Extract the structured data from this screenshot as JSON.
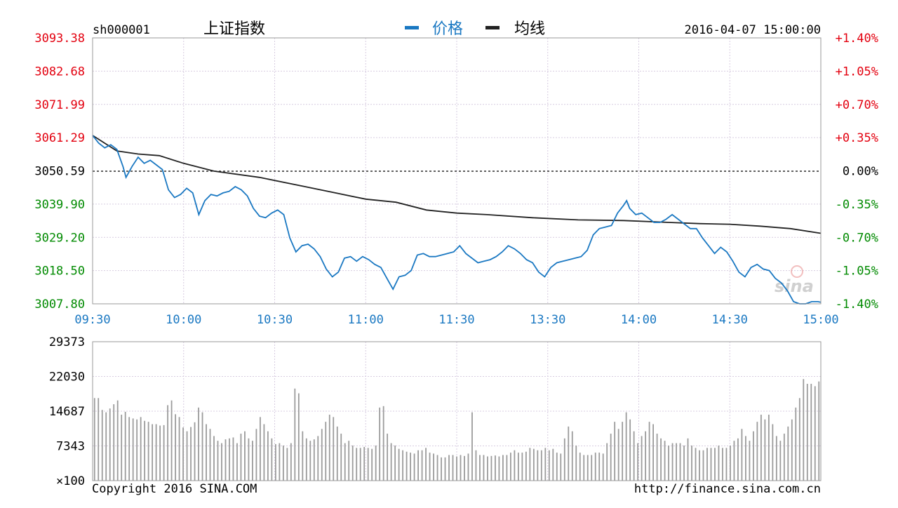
{
  "chart_data": {
    "type": "line",
    "symbol": "sh000001",
    "name": "上证指数",
    "datetime": "2016-04-07 15:00:00",
    "legend": [
      {
        "label": "价格",
        "color": "#1a78c2"
      },
      {
        "label": "均线",
        "color": "#222222"
      }
    ],
    "legend_position": "top-center",
    "grid": true,
    "colors": {
      "up": "#e3000f",
      "down": "#008a00",
      "flat": "#000000",
      "price": "#1a78c2",
      "average": "#222222",
      "time_axis": "#1a78c2",
      "volume": "#9b9b9b"
    },
    "price_axis": {
      "ylim": [
        3007.8,
        3093.38
      ],
      "ticks": [
        "3093.38",
        "3082.68",
        "3071.99",
        "3061.29",
        "3050.59",
        "3039.90",
        "3029.20",
        "3018.50",
        "3007.80"
      ],
      "reference": 3050.59
    },
    "percent_axis": {
      "ticks": [
        "+1.40%",
        "+1.05%",
        "+0.70%",
        "+0.35%",
        "0.00%",
        "-0.35%",
        "-0.70%",
        "-1.05%",
        "-1.40%"
      ]
    },
    "time_ticks": [
      "09:30",
      "10:00",
      "10:30",
      "11:00",
      "11:30",
      "13:30",
      "14:00",
      "14:30",
      "15:00"
    ],
    "total_minutes": 240,
    "price_series": {
      "name": "价格",
      "points": [
        [
          0,
          3062.0
        ],
        [
          2,
          3059.5
        ],
        [
          4,
          3058.0
        ],
        [
          6,
          3059.0
        ],
        [
          8,
          3057.5
        ],
        [
          10,
          3052.0
        ],
        [
          11,
          3048.5
        ],
        [
          13,
          3052.0
        ],
        [
          15,
          3055.0
        ],
        [
          17,
          3053.0
        ],
        [
          19,
          3054.0
        ],
        [
          21,
          3052.5
        ],
        [
          23,
          3051.0
        ],
        [
          25,
          3044.5
        ],
        [
          27,
          3042.0
        ],
        [
          29,
          3043.0
        ],
        [
          31,
          3045.0
        ],
        [
          33,
          3043.5
        ],
        [
          35,
          3036.5
        ],
        [
          37,
          3041.0
        ],
        [
          39,
          3043.0
        ],
        [
          41,
          3042.5
        ],
        [
          43,
          3043.5
        ],
        [
          45,
          3044.0
        ],
        [
          47,
          3045.5
        ],
        [
          49,
          3044.5
        ],
        [
          51,
          3042.5
        ],
        [
          53,
          3038.5
        ],
        [
          55,
          3036.0
        ],
        [
          57,
          3035.5
        ],
        [
          59,
          3037.0
        ],
        [
          61,
          3038.0
        ],
        [
          63,
          3036.5
        ],
        [
          65,
          3029.0
        ],
        [
          67,
          3024.5
        ],
        [
          69,
          3026.5
        ],
        [
          71,
          3027.0
        ],
        [
          73,
          3025.5
        ],
        [
          75,
          3023.0
        ],
        [
          77,
          3019.0
        ],
        [
          79,
          3016.5
        ],
        [
          81,
          3018.0
        ],
        [
          83,
          3022.5
        ],
        [
          85,
          3023.0
        ],
        [
          87,
          3021.5
        ],
        [
          89,
          3023.0
        ],
        [
          91,
          3022.0
        ],
        [
          93,
          3020.5
        ],
        [
          95,
          3019.5
        ],
        [
          97,
          3016.0
        ],
        [
          99,
          3012.5
        ],
        [
          101,
          3016.5
        ],
        [
          103,
          3017.0
        ],
        [
          105,
          3018.5
        ],
        [
          107,
          3023.5
        ],
        [
          109,
          3024.0
        ],
        [
          111,
          3023.0
        ],
        [
          113,
          3023.0
        ],
        [
          115,
          3023.5
        ],
        [
          117,
          3024.0
        ],
        [
          119,
          3024.5
        ],
        [
          121,
          3026.5
        ],
        [
          123,
          3024.0
        ],
        [
          125,
          3022.5
        ],
        [
          127,
          3021.0
        ],
        [
          129,
          3021.5
        ],
        [
          131,
          3022.0
        ],
        [
          133,
          3023.0
        ],
        [
          135,
          3024.5
        ],
        [
          137,
          3026.5
        ],
        [
          139,
          3025.5
        ],
        [
          141,
          3024.0
        ],
        [
          143,
          3022.0
        ],
        [
          145,
          3021.0
        ],
        [
          147,
          3018.0
        ],
        [
          149,
          3016.5
        ],
        [
          151,
          3019.5
        ],
        [
          153,
          3021.0
        ],
        [
          155,
          3021.5
        ],
        [
          157,
          3022.0
        ],
        [
          159,
          3022.5
        ],
        [
          161,
          3023.0
        ],
        [
          163,
          3025.0
        ],
        [
          165,
          3030.0
        ],
        [
          167,
          3032.0
        ],
        [
          169,
          3032.5
        ],
        [
          171,
          3033.0
        ],
        [
          173,
          3037.0
        ],
        [
          175,
          3039.5
        ],
        [
          176,
          3041.0
        ],
        [
          177,
          3038.5
        ],
        [
          179,
          3036.5
        ],
        [
          181,
          3037.0
        ],
        [
          183,
          3035.5
        ],
        [
          185,
          3034.0
        ],
        [
          187,
          3034.0
        ],
        [
          189,
          3035.0
        ],
        [
          191,
          3036.5
        ],
        [
          193,
          3035.0
        ],
        [
          195,
          3033.5
        ],
        [
          197,
          3032.0
        ],
        [
          199,
          3032.0
        ],
        [
          201,
          3029.0
        ],
        [
          203,
          3026.5
        ],
        [
          205,
          3024.0
        ],
        [
          207,
          3026.0
        ],
        [
          209,
          3024.5
        ],
        [
          211,
          3021.5
        ],
        [
          213,
          3018.0
        ],
        [
          215,
          3016.5
        ],
        [
          217,
          3019.5
        ],
        [
          219,
          3020.5
        ],
        [
          221,
          3019.0
        ],
        [
          223,
          3018.5
        ],
        [
          225,
          3016.0
        ],
        [
          227,
          3014.5
        ],
        [
          229,
          3012.0
        ],
        [
          231,
          3008.5
        ],
        [
          233,
          3007.8
        ],
        [
          235,
          3007.8
        ],
        [
          237,
          3008.5
        ],
        [
          239,
          3008.5
        ],
        [
          240,
          3008.3
        ]
      ]
    },
    "average_series": {
      "name": "均线",
      "points": [
        [
          0,
          3062.0
        ],
        [
          8,
          3057.0
        ],
        [
          15,
          3056.0
        ],
        [
          22,
          3055.5
        ],
        [
          30,
          3053.0
        ],
        [
          40,
          3050.5
        ],
        [
          55,
          3048.5
        ],
        [
          70,
          3045.5
        ],
        [
          80,
          3043.5
        ],
        [
          90,
          3041.5
        ],
        [
          100,
          3040.5
        ],
        [
          110,
          3038.0
        ],
        [
          120,
          3037.0
        ],
        [
          130,
          3036.5
        ],
        [
          145,
          3035.5
        ],
        [
          160,
          3034.8
        ],
        [
          175,
          3034.6
        ],
        [
          190,
          3034.0
        ],
        [
          200,
          3033.6
        ],
        [
          210,
          3033.4
        ],
        [
          220,
          3032.8
        ],
        [
          230,
          3032.0
        ],
        [
          240,
          3030.5
        ]
      ]
    },
    "volume": {
      "ylim": [
        100,
        29373
      ],
      "ticks": [
        "29373",
        "22030",
        "14687",
        "7343",
        "×100"
      ],
      "values": [
        17500,
        17500,
        15000,
        14500,
        15300,
        16200,
        17000,
        14000,
        14600,
        13500,
        13200,
        13000,
        13500,
        12700,
        12500,
        12000,
        12000,
        11700,
        11800,
        16000,
        17000,
        14100,
        13500,
        11300,
        10500,
        11400,
        12400,
        15500,
        14500,
        12000,
        11000,
        9500,
        8500,
        8000,
        8800,
        9000,
        9200,
        8000,
        10000,
        10500,
        9000,
        8500,
        11000,
        13500,
        12000,
        10500,
        9000,
        7800,
        8000,
        7500,
        7000,
        8000,
        19500,
        18500,
        10500,
        9000,
        8500,
        8800,
        9500,
        11000,
        12500,
        14000,
        13500,
        11500,
        10000,
        8000,
        8500,
        7500,
        7000,
        7000,
        7200,
        7000,
        6800,
        7500,
        15500,
        15800,
        10000,
        8000,
        7500,
        6800,
        6500,
        6200,
        6000,
        5800,
        6500,
        6500,
        7000,
        6000,
        5800,
        5500,
        5000,
        5000,
        5500,
        5500,
        5200,
        5500,
        5300,
        5800,
        14500,
        6500,
        5500,
        5500,
        5200,
        5300,
        5400,
        5200,
        5500,
        5500,
        6000,
        6500,
        6000,
        6000,
        6200,
        7000,
        6800,
        6500,
        6500,
        7000,
        6500,
        6800,
        6000,
        5800,
        9000,
        11500,
        10500,
        7500,
        6000,
        5500,
        5500,
        5500,
        6000,
        6000,
        5800,
        8000,
        10000,
        12500,
        11000,
        12500,
        14500,
        13000,
        10500,
        8000,
        9500,
        10500,
        12500,
        12000,
        10000,
        9000,
        8500,
        7500,
        8000,
        8000,
        8000,
        7500,
        9000,
        7500,
        7000,
        6500,
        6500,
        7000,
        7000,
        7000,
        7500,
        7000,
        7000,
        7500,
        8500,
        9000,
        11000,
        9500,
        8500,
        10500,
        12500,
        14000,
        13000,
        14000,
        12000,
        9500,
        8500,
        10000,
        11500,
        13000,
        15500,
        17500,
        21500,
        20500,
        20500,
        20000,
        21000
      ]
    },
    "copyright": "Copyright 2016 SINA.COM",
    "source_url": "http://finance.sina.com.cn",
    "watermark": "sina"
  }
}
